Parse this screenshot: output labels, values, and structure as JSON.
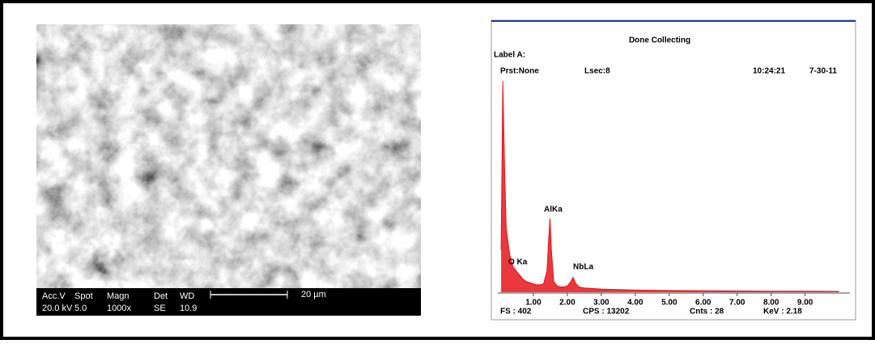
{
  "sem_image": {
    "info_headers": [
      "Acc.V",
      "Spot",
      "Magn",
      "Det",
      "WD"
    ],
    "info_values": [
      "20.0 kV",
      "5.0",
      "1000x",
      "SE",
      "10.9"
    ],
    "scale_label": "20 µm"
  },
  "chart_data": {
    "type": "line",
    "title": "Done Collecting",
    "header": {
      "label": "Label A:",
      "preset": "Prst:None",
      "lsec": "Lsec:8",
      "time": "10:24:21",
      "date": "7-30-11"
    },
    "x": [
      0.05,
      0.1,
      0.15,
      0.2,
      0.3,
      0.4,
      0.5,
      0.55,
      0.6,
      0.7,
      0.8,
      0.9,
      1.0,
      1.1,
      1.2,
      1.3,
      1.4,
      1.45,
      1.49,
      1.53,
      1.6,
      1.7,
      1.8,
      1.9,
      2.0,
      2.1,
      2.17,
      2.25,
      2.35,
      2.5,
      3,
      4,
      5,
      6,
      7,
      8,
      9,
      10
    ],
    "series": [
      {
        "color": "#e8141c",
        "values": [
          20,
          100,
          60,
          30,
          18,
          12,
          10,
          9,
          8,
          6,
          5,
          4.5,
          4,
          3.5,
          3.5,
          4,
          10,
          25,
          35,
          20,
          5,
          3,
          2.5,
          2.5,
          3,
          5,
          7,
          4,
          2.5,
          2,
          1.5,
          1,
          0.8,
          0.7,
          0.6,
          0.5,
          0.5,
          0.4
        ]
      }
    ],
    "peak_labels": [
      "O Ka",
      "AlKa",
      "NbLa"
    ],
    "xlim": [
      0,
      10.2
    ],
    "ylim": [
      0,
      100
    ],
    "xticks": [
      {
        "value": 1,
        "label": "1.00"
      },
      {
        "value": 2,
        "label": "2.00"
      },
      {
        "value": 3,
        "label": "3.00"
      },
      {
        "value": 4,
        "label": "4.00"
      },
      {
        "value": 5,
        "label": "5.00"
      },
      {
        "value": 6,
        "label": "6.00"
      },
      {
        "value": 7,
        "label": "7.00"
      },
      {
        "value": 8,
        "label": "8.00"
      },
      {
        "value": 9,
        "label": "9.00"
      }
    ],
    "footer": {
      "fs": "FS : 402",
      "cps": "CPS : 13202",
      "cnts": "Cnts : 28",
      "kev": "KeV : 2.18"
    }
  }
}
